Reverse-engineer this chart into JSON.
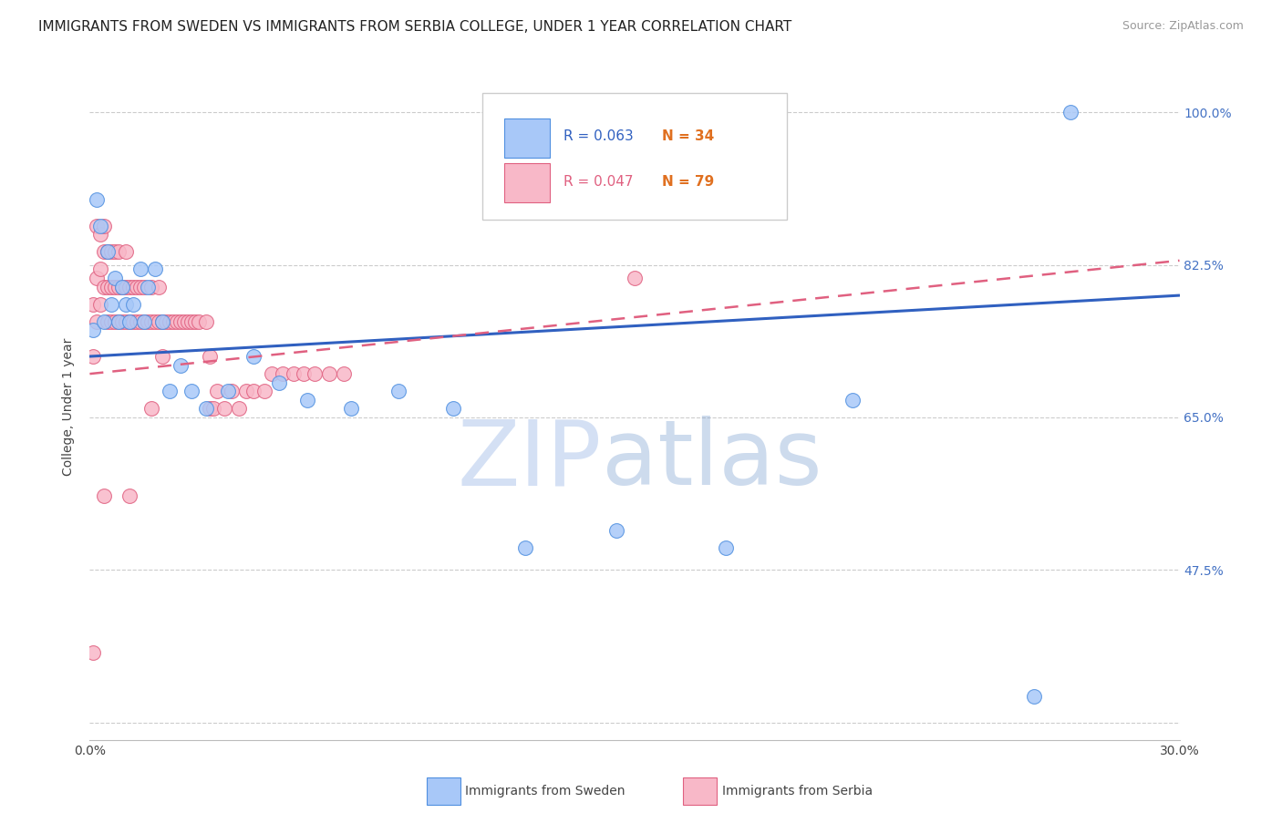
{
  "title": "IMMIGRANTS FROM SWEDEN VS IMMIGRANTS FROM SERBIA COLLEGE, UNDER 1 YEAR CORRELATION CHART",
  "source": "Source: ZipAtlas.com",
  "ylabel": "College, Under 1 year",
  "legend_label_blue": "Immigrants from Sweden",
  "legend_label_pink": "Immigrants from Serbia",
  "legend_r_blue": "R = 0.063",
  "legend_n_blue": "N = 34",
  "legend_r_pink": "R = 0.047",
  "legend_n_pink": "N = 79",
  "xmin": 0.0,
  "xmax": 0.3,
  "ymin": 0.28,
  "ymax": 1.045,
  "xticks": [
    0.0,
    0.05,
    0.1,
    0.15,
    0.2,
    0.25,
    0.3
  ],
  "xticklabels": [
    "0.0%",
    "",
    "",
    "",
    "",
    "",
    "30.0%"
  ],
  "yticks": [
    0.3,
    0.475,
    0.65,
    0.825,
    1.0
  ],
  "yticklabels": [
    "",
    "47.5%",
    "65.0%",
    "82.5%",
    "100.0%"
  ],
  "grid_yticks": [
    0.3,
    0.475,
    0.65,
    0.825,
    1.0
  ],
  "watermark_zip": "ZIP",
  "watermark_atlas": "atlas",
  "watermark_color": "#c8daf5",
  "background_color": "#ffffff",
  "blue_fill": "#a8c8f8",
  "blue_edge": "#5090e0",
  "pink_fill": "#f8b8c8",
  "pink_edge": "#e06080",
  "blue_line_color": "#3060c0",
  "pink_line_color": "#e06080",
  "title_fontsize": 11,
  "axis_label_fontsize": 10,
  "tick_fontsize": 10,
  "sweden_x": [
    0.001,
    0.002,
    0.003,
    0.004,
    0.005,
    0.006,
    0.007,
    0.008,
    0.009,
    0.01,
    0.011,
    0.012,
    0.014,
    0.015,
    0.016,
    0.018,
    0.02,
    0.022,
    0.025,
    0.028,
    0.032,
    0.038,
    0.045,
    0.052,
    0.06,
    0.072,
    0.085,
    0.1,
    0.12,
    0.145,
    0.175,
    0.21,
    0.26,
    0.27
  ],
  "sweden_y": [
    0.75,
    0.9,
    0.87,
    0.76,
    0.84,
    0.78,
    0.81,
    0.76,
    0.8,
    0.78,
    0.76,
    0.78,
    0.82,
    0.76,
    0.8,
    0.82,
    0.76,
    0.68,
    0.71,
    0.68,
    0.66,
    0.68,
    0.72,
    0.69,
    0.67,
    0.66,
    0.68,
    0.66,
    0.5,
    0.52,
    0.5,
    0.67,
    0.33,
    1.0
  ],
  "serbia_x": [
    0.001,
    0.001,
    0.002,
    0.002,
    0.002,
    0.003,
    0.003,
    0.003,
    0.004,
    0.004,
    0.004,
    0.005,
    0.005,
    0.005,
    0.006,
    0.006,
    0.006,
    0.007,
    0.007,
    0.007,
    0.008,
    0.008,
    0.008,
    0.009,
    0.009,
    0.01,
    0.01,
    0.01,
    0.011,
    0.011,
    0.012,
    0.012,
    0.013,
    0.013,
    0.014,
    0.014,
    0.015,
    0.015,
    0.016,
    0.017,
    0.017,
    0.018,
    0.019,
    0.019,
    0.02,
    0.021,
    0.022,
    0.023,
    0.024,
    0.025,
    0.026,
    0.027,
    0.028,
    0.029,
    0.03,
    0.032,
    0.033,
    0.034,
    0.035,
    0.037,
    0.039,
    0.041,
    0.043,
    0.045,
    0.048,
    0.05,
    0.053,
    0.056,
    0.059,
    0.062,
    0.066,
    0.07,
    0.001,
    0.004,
    0.011,
    0.017,
    0.02,
    0.033,
    0.15
  ],
  "serbia_y": [
    0.72,
    0.78,
    0.76,
    0.81,
    0.87,
    0.78,
    0.82,
    0.86,
    0.8,
    0.84,
    0.87,
    0.76,
    0.8,
    0.84,
    0.76,
    0.8,
    0.84,
    0.76,
    0.8,
    0.84,
    0.76,
    0.8,
    0.84,
    0.76,
    0.8,
    0.76,
    0.8,
    0.84,
    0.76,
    0.8,
    0.76,
    0.8,
    0.76,
    0.8,
    0.76,
    0.8,
    0.76,
    0.8,
    0.76,
    0.76,
    0.8,
    0.76,
    0.76,
    0.8,
    0.76,
    0.76,
    0.76,
    0.76,
    0.76,
    0.76,
    0.76,
    0.76,
    0.76,
    0.76,
    0.76,
    0.76,
    0.66,
    0.66,
    0.68,
    0.66,
    0.68,
    0.66,
    0.68,
    0.68,
    0.68,
    0.7,
    0.7,
    0.7,
    0.7,
    0.7,
    0.7,
    0.7,
    0.38,
    0.56,
    0.56,
    0.66,
    0.72,
    0.72,
    0.81
  ],
  "trend_blue_x0": 0.0,
  "trend_blue_y0": 0.72,
  "trend_blue_x1": 0.3,
  "trend_blue_y1": 0.79,
  "trend_pink_x0": 0.0,
  "trend_pink_y0": 0.7,
  "trend_pink_x1": 0.3,
  "trend_pink_y1": 0.83
}
